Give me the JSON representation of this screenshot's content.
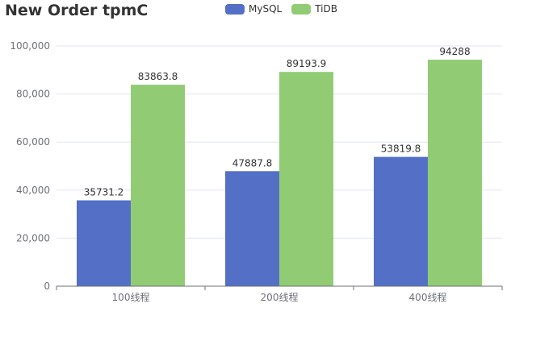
{
  "chart_data": {
    "type": "bar",
    "title": "New Order tpmC",
    "categories": [
      "100线程",
      "200线程",
      "400线程"
    ],
    "series": [
      {
        "name": "MySQL",
        "values": [
          35731.2,
          47887.8,
          53819.8
        ],
        "labels": [
          "35731.2",
          "47887.8",
          "53819.8"
        ],
        "color": "#5470c6"
      },
      {
        "name": "TiDB",
        "values": [
          83863.8,
          89193.9,
          94288
        ],
        "labels": [
          "83863.8",
          "89193.9",
          "94288"
        ],
        "color": "#91cc75"
      }
    ],
    "yticks": [
      "0",
      "20,000",
      "40,000",
      "60,000",
      "80,000",
      "100,000"
    ],
    "ytick_values": [
      0,
      20000,
      40000,
      60000,
      80000,
      100000
    ],
    "ylim": [
      0,
      100000
    ],
    "xlabel": "",
    "ylabel": "",
    "grid": true,
    "legend_position": "top-center"
  }
}
